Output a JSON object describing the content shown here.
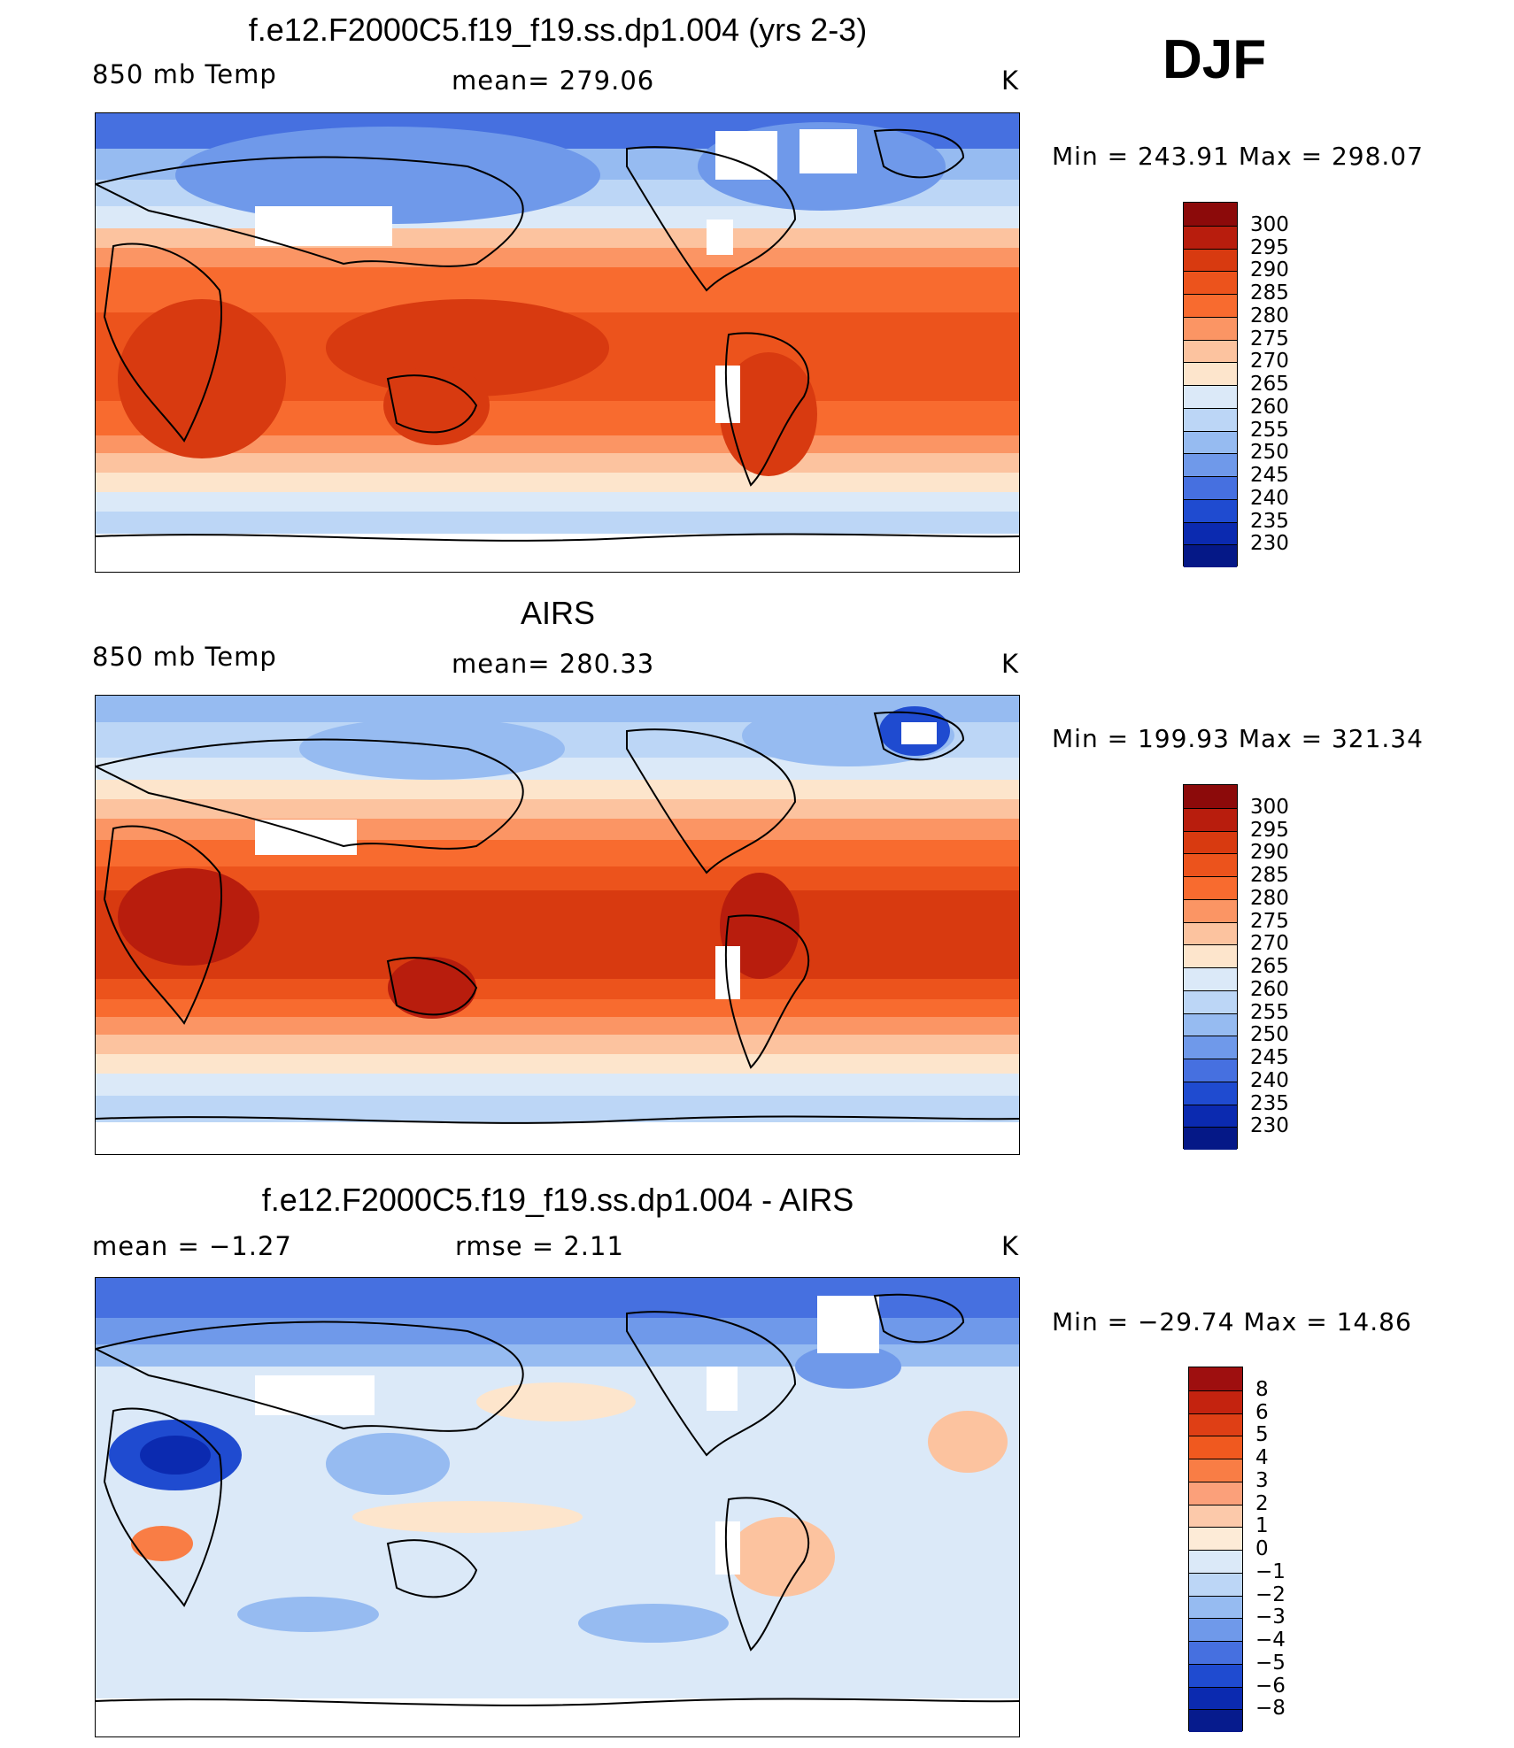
{
  "season": "DJF",
  "panels": [
    {
      "title": "f.e12.F2000C5.f19_f19.ss.dp1.004 (yrs 2-3)",
      "left_label": "850 mb Temp",
      "center_label": "mean=  279.06",
      "right_label": "K",
      "minmax": "Min  =  243.91  Max  =  298.07",
      "palette": "warm",
      "colorbar_labels": [
        "300",
        "295",
        "290",
        "285",
        "280",
        "275",
        "270",
        "265",
        "260",
        "255",
        "250",
        "245",
        "240",
        "235",
        "230"
      ],
      "colorbar_colors": [
        "#8c0a0a",
        "#b81d0d",
        "#d83a10",
        "#ec531c",
        "#f86b2f",
        "#fb9564",
        "#fcc39f",
        "#fde5cc",
        "#dbe9f8",
        "#bcd6f6",
        "#96bbf1",
        "#6f99ea",
        "#4670e0",
        "#1f4bd0",
        "#0b2ab0",
        "#051887"
      ]
    },
    {
      "title": "AIRS",
      "left_label": "850 mb Temp",
      "center_label": "mean=  280.33",
      "right_label": "K",
      "minmax": "Min  =  199.93  Max  =  321.34",
      "palette": "warm",
      "colorbar_labels": [
        "300",
        "295",
        "290",
        "285",
        "280",
        "275",
        "270",
        "265",
        "260",
        "255",
        "250",
        "245",
        "240",
        "235",
        "230"
      ],
      "colorbar_colors": [
        "#8c0a0a",
        "#b81d0d",
        "#d83a10",
        "#ec531c",
        "#f86b2f",
        "#fb9564",
        "#fcc39f",
        "#fde5cc",
        "#dbe9f8",
        "#bcd6f6",
        "#96bbf1",
        "#6f99ea",
        "#4670e0",
        "#1f4bd0",
        "#0b2ab0",
        "#051887"
      ]
    },
    {
      "title": "f.e12.F2000C5.f19_f19.ss.dp1.004 - AIRS",
      "left_label": "mean  =     −1.27",
      "center_label": "rmse  =     2.11",
      "right_label": "K",
      "minmax": "Min  =  −29.74  Max  =    14.86",
      "palette": "diff",
      "colorbar_labels": [
        "8",
        "6",
        "5",
        "4",
        "3",
        "2",
        "1",
        "0",
        "−1",
        "−2",
        "−3",
        "−4",
        "−5",
        "−6",
        "−8"
      ],
      "colorbar_colors": [
        "#9e0f0f",
        "#c4230f",
        "#df3f15",
        "#f0591f",
        "#f97d45",
        "#fba07a",
        "#fcc9aa",
        "#fdebd7",
        "#dbe9f8",
        "#bcd6f6",
        "#96bbf1",
        "#6f99ea",
        "#4670e0",
        "#1f4bd0",
        "#0b2ab0",
        "#061b8d"
      ]
    }
  ]
}
